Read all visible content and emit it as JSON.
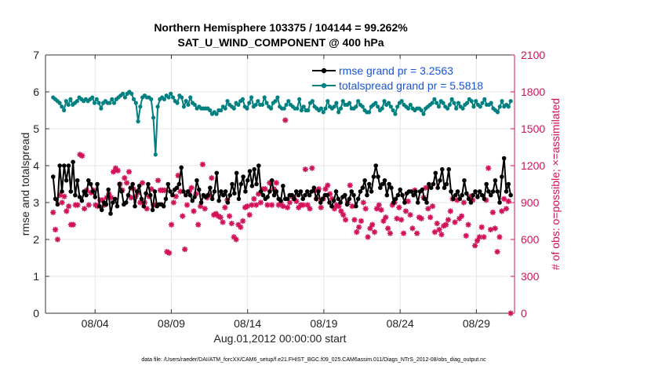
{
  "chart_data": {
    "type": "line",
    "title": "Northern Hemisphere 103375 / 104144 = 99.262%",
    "subtitle": "SAT_U_WIND_COMPONENT @ 400 hPa",
    "xlabel": "Aug.01,2012 00:00:00 start",
    "ylabel": "rmse and totalspread",
    "ylabel_right": "# of obs: o=possible; ×=assimilated",
    "footer": "data file: /Users/raeder/DAI/ATM_forcXX/CAM6_setup/f.e21.FHIST_BGC.f09_025.CAM6assim.011/Diags_NTrS_2012-08/obs_diag_output.nc",
    "x_ticks": [
      "08/04",
      "08/09",
      "08/14",
      "08/19",
      "08/24",
      "08/29"
    ],
    "x_tick_positions": [
      3.5,
      8.5,
      13.5,
      18.5,
      23.5,
      28.5
    ],
    "xlim": [
      0.25,
      31.0
    ],
    "y_ticks": [
      0,
      1,
      2,
      3,
      4,
      5,
      6,
      7
    ],
    "ylim": [
      0,
      7
    ],
    "y_right_ticks": [
      0,
      300,
      600,
      900,
      1200,
      1500,
      1800,
      2100
    ],
    "y_right_lim": [
      0,
      2100
    ],
    "grid": true,
    "legend_position": "top-right",
    "colors": {
      "rmse": "#000000",
      "spread": "#008080",
      "obs": "#d1125a"
    },
    "series": [
      {
        "name": "rmse grand pr = 3.2563",
        "axis": "left",
        "color": "#000000",
        "values": [
          3.7,
          3.1,
          2.95,
          4.0,
          3.3,
          4.0,
          3.6,
          4.0,
          3.3,
          4.1,
          3.2,
          3.6,
          3.15,
          3.05,
          3.3,
          3.2,
          3.6,
          3.5,
          3.3,
          3.15,
          3.5,
          2.9,
          2.8,
          3.0,
          2.95,
          3.35,
          2.7,
          3.0,
          3.1,
          2.9,
          3.5,
          3.3,
          2.95,
          3.0,
          3.2,
          3.4,
          3.5,
          2.9,
          3.3,
          3.45,
          3.1,
          2.9,
          3.25,
          3.5,
          3.2,
          2.8,
          3.3,
          2.9,
          2.95,
          2.95,
          2.9,
          3.1,
          3.5,
          3.3,
          3.2,
          3.35,
          3.4,
          3.5,
          3.95,
          3.3,
          3.2,
          3.3,
          3.2,
          3.05,
          3.15,
          3.6,
          3.35,
          3.0,
          3.2,
          3.15,
          3.2,
          3.4,
          3.1,
          3.3,
          3.8,
          3.05,
          3.3,
          3.2,
          3.3,
          3.0,
          3.2,
          3.5,
          3.25,
          3.8,
          3.1,
          3.5,
          3.7,
          3.3,
          3.6,
          3.85,
          3.45,
          3.9,
          3.5,
          4.0,
          3.3,
          3.2,
          3.1,
          3.15,
          3.3,
          3.6,
          3.2,
          3.3,
          3.1,
          3.05,
          3.45,
          3.1,
          3.1,
          3.2,
          3.2,
          3.1,
          3.3,
          3.2,
          3.3,
          3.1,
          3.2,
          3.3,
          3.2,
          3.3,
          3.4,
          3.1,
          3.3,
          3.0,
          3.1,
          3.2,
          3.2,
          3.0,
          2.9,
          3.05,
          3.3,
          3.1,
          3.0,
          3.15,
          3.2,
          2.95,
          3.1,
          3.3,
          3.2,
          2.9,
          3.1,
          3.3,
          3.4,
          3.6,
          3.2,
          3.5,
          3.3,
          3.7,
          4.0,
          3.7,
          3.4,
          3.5,
          3.6,
          3.2,
          3.5,
          3.4,
          3.0,
          3.1,
          3.2,
          3.35,
          3.2,
          3.0,
          3.25,
          3.3,
          3.3,
          3.2,
          3.3,
          3.0,
          3.3,
          3.35,
          3.1,
          3.0,
          3.5,
          3.4,
          3.5,
          3.8,
          3.4,
          3.6,
          3.9,
          3.4,
          3.5,
          3.9,
          3.3,
          3.1,
          3.2,
          3.3,
          3.1,
          3.2,
          3.6,
          3.25,
          3.1,
          3.0,
          3.2,
          3.3,
          3.15,
          3.3,
          3.2,
          3.1,
          3.5,
          3.3,
          3.2,
          3.3,
          3.6,
          3.3,
          3.0,
          3.7,
          4.2,
          3.3,
          3.5,
          3.2
        ]
      },
      {
        "name": "totalspread grand pr = 5.5818",
        "axis": "left",
        "color": "#008080",
        "values": [
          5.85,
          5.8,
          5.75,
          5.7,
          5.6,
          5.5,
          5.75,
          5.65,
          5.8,
          5.65,
          5.7,
          5.75,
          5.85,
          5.8,
          5.75,
          5.8,
          5.75,
          5.8,
          5.85,
          5.7,
          5.8,
          5.7,
          5.55,
          5.7,
          5.75,
          5.7,
          5.7,
          5.8,
          5.7,
          5.8,
          5.85,
          5.9,
          5.95,
          5.85,
          5.95,
          6.0,
          5.95,
          5.8,
          5.7,
          5.2,
          5.6,
          5.85,
          5.9,
          5.85,
          5.85,
          5.8,
          5.3,
          4.3,
          5.6,
          5.8,
          5.85,
          5.8,
          5.9,
          5.85,
          5.95,
          5.85,
          5.75,
          5.7,
          5.9,
          5.85,
          5.6,
          5.75,
          5.65,
          5.85,
          5.7,
          5.65,
          5.55,
          5.6,
          5.55,
          5.55,
          5.55,
          5.55,
          5.5,
          5.4,
          5.45,
          5.4,
          5.5,
          5.5,
          5.6,
          5.55,
          5.75,
          5.65,
          5.6,
          5.55,
          5.7,
          5.65,
          5.75,
          5.8,
          5.6,
          5.55,
          5.7,
          5.85,
          5.6,
          5.65,
          5.75,
          5.65,
          5.65,
          5.85,
          5.7,
          5.6,
          5.55,
          5.7,
          5.75,
          5.85,
          5.6,
          5.55,
          5.55,
          5.65,
          5.75,
          5.65,
          5.6,
          5.55,
          5.55,
          5.8,
          5.5,
          5.6,
          5.5,
          5.5,
          5.7,
          5.75,
          5.6,
          5.55,
          5.5,
          5.55,
          5.45,
          5.55,
          5.75,
          5.6,
          5.55,
          5.6,
          5.7,
          5.45,
          5.55,
          5.75,
          5.65,
          5.65,
          5.7,
          5.55,
          5.55,
          5.6,
          5.75,
          5.65,
          5.6,
          5.5,
          5.45,
          5.45,
          5.6,
          5.65,
          5.7,
          5.6,
          5.5,
          5.55,
          5.75,
          5.65,
          5.7,
          5.6,
          5.5,
          5.4,
          5.6,
          5.7,
          5.75,
          5.65,
          5.6,
          5.55,
          5.65,
          5.55,
          5.5,
          5.55,
          5.55,
          5.5,
          5.4,
          5.55,
          5.6,
          5.65,
          5.7,
          5.8,
          5.7,
          5.6,
          5.75,
          5.7,
          5.6,
          5.55,
          5.65,
          5.8,
          5.7,
          5.55,
          5.7,
          5.6,
          5.55,
          5.65,
          5.7,
          5.8,
          5.75,
          5.6,
          5.75,
          5.65,
          5.6,
          5.7,
          5.8,
          5.65,
          5.65,
          5.7,
          5.55,
          5.5,
          5.45,
          5.6,
          5.75,
          5.6,
          5.65,
          5.6,
          5.75
        ]
      },
      {
        "name": "obs possible / assimilated",
        "axis": "right",
        "color": "#d1125a",
        "values": [
          820,
          680,
          600,
          960,
          900,
          950,
          830,
          870,
          720,
          720,
          880,
          880,
          1290,
          1280,
          850,
          1000,
          880,
          980,
          1000,
          880,
          870,
          920,
          920,
          880,
          940,
          970,
          940,
          1150,
          1180,
          1160,
          1050,
          1000,
          1100,
          1060,
          1150,
          940,
          1010,
          950,
          980,
          900,
          1060,
          900,
          850,
          950,
          1010,
          880,
          880,
          1080,
          1000,
          1000,
          1000,
          500,
          490,
          720,
          900,
          950,
          1120,
          990,
          790,
          520,
          880,
          990,
          1020,
          830,
          970,
          720,
          870,
          1210,
          850,
          940,
          960,
          1100,
          800,
          810,
          790,
          780,
          740,
          860,
          920,
          790,
          730,
          620,
          600,
          720,
          700,
          750,
          860,
          870,
          800,
          880,
          930,
          880,
          970,
          900,
          1010,
          1010,
          880,
          1060,
          880,
          1010,
          1060,
          880,
          900,
          870,
          1570,
          860,
          900,
          950,
          930,
          910,
          860,
          880,
          880,
          1170,
          880,
          850,
          1180,
          1000,
          930,
          1010,
          860,
          930,
          1010,
          1040,
          970,
          930,
          850,
          880,
          870,
          830,
          800,
          760,
          900,
          1040,
          870,
          760,
          660,
          700,
          750,
          900,
          850,
          620,
          690,
          720,
          660,
          850,
          880,
          840,
          750,
          780,
          690,
          650,
          880,
          900,
          770,
          860,
          760,
          650,
          830,
          910,
          800,
          690,
          1000,
          650,
          780,
          770,
          940,
          1020,
          850,
          780,
          870,
          660,
          730,
          680,
          640,
          710,
          720,
          760,
          830,
          930,
          740,
          920,
          770,
          790,
          900,
          630,
          720,
          950,
          920,
          550,
          590,
          620,
          700,
          620,
          920,
          1180,
          680,
          820,
          690,
          500,
          620,
          830,
          930,
          850,
          910,
          0
        ]
      }
    ]
  }
}
